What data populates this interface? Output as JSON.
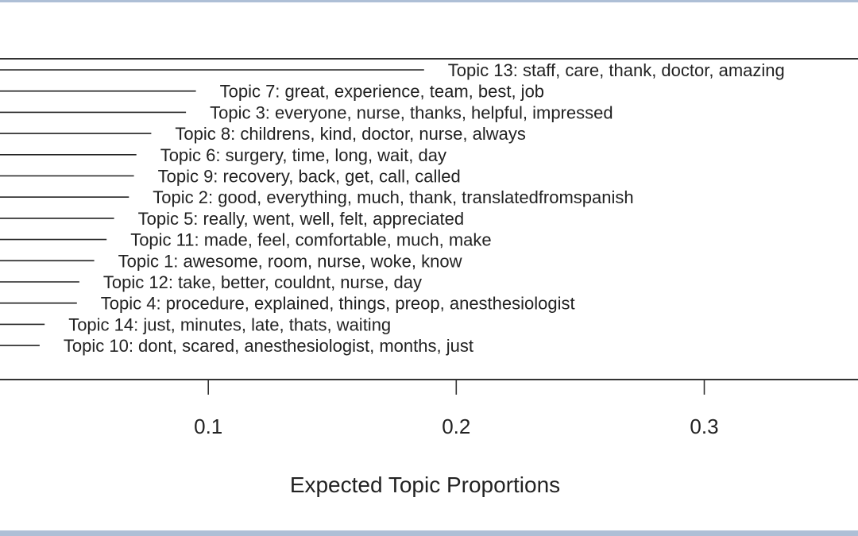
{
  "chart_data": {
    "type": "bar",
    "orientation": "horizontal",
    "xlabel": "Expected Topic Proportions",
    "xticks": [
      0.1,
      0.2,
      0.3
    ],
    "xtick_labels": [
      "0.1",
      "0.2",
      "0.3"
    ],
    "xlim": [
      0.016,
      0.362
    ],
    "categories": [
      "Topic 13: staff, care, thank, doctor, amazing",
      "Topic 7: great, experience, team, best, job",
      "Topic 3: everyone, nurse, thanks, helpful, impressed",
      "Topic 8: childrens, kind, doctor, nurse, always",
      "Topic 6: surgery, time, long, wait, day",
      "Topic 9: recovery, back, get, call, called",
      "Topic 2: good, everything, much, thank, translatedfromspanish",
      "Topic 5: really, went, well, felt, appreciated",
      "Topic 11: made, feel, comfortable, much, make",
      "Topic 1: awesome, room, nurse, woke, know",
      "Topic 12: take, better, couldnt, nurse, day",
      "Topic 4: procedure, explained, things, preop, anesthesiologist",
      "Topic 14: just, minutes, late, thats, waiting",
      "Topic 10: dont, scared, anesthesiologist, months, just"
    ],
    "values": [
      0.187,
      0.095,
      0.091,
      0.077,
      0.071,
      0.07,
      0.068,
      0.062,
      0.059,
      0.054,
      0.048,
      0.047,
      0.034,
      0.032
    ],
    "grid": false,
    "legend": "none",
    "line_color": "#222222"
  }
}
